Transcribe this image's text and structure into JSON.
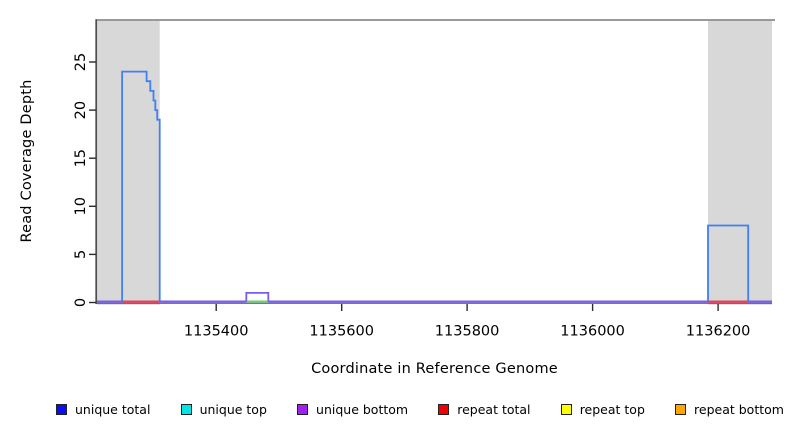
{
  "figure": {
    "title": "",
    "xlabel": "Coordinate in Reference Genome",
    "ylabel": "Read Coverage Depth",
    "background": "#ffffff",
    "styles": {
      "region_fill": "#d8d8d8",
      "frame_top_color": "#8c8c8c",
      "axis_color": "#4d4d4d",
      "tick_color": "#2b2b2b",
      "text_color": "#000000"
    }
  },
  "chart_data": {
    "type": "line",
    "subtype": "step-coverage",
    "title": "",
    "xlabel": "Coordinate in Reference Genome",
    "ylabel": "Read Coverage Depth",
    "xlim": [
      1135210,
      1136286
    ],
    "ylim": [
      0,
      29.5
    ],
    "xticks": [
      1135400,
      1135600,
      1135800,
      1136000,
      1136200
    ],
    "yticks": [
      0,
      5,
      10,
      15,
      20,
      25
    ],
    "grid": false,
    "legend_position": "bottom",
    "repeat_regions": [
      {
        "start": 1135210,
        "end": 1135310
      },
      {
        "start": 1136184,
        "end": 1136286
      }
    ],
    "traces": [
      {
        "name": "unique total (left repeat-edge block)",
        "color": "#3f80f2",
        "width": 1.8,
        "segments": [
          [
            1135250,
            1135289,
            24
          ],
          [
            1135289,
            1135295,
            23
          ],
          [
            1135295,
            1135300,
            22
          ],
          [
            1135300,
            1135303,
            21
          ],
          [
            1135303,
            1135306,
            20
          ],
          [
            1135306,
            1135310,
            19
          ]
        ]
      },
      {
        "name": "unique bottom bump",
        "color": "#7a5cf0",
        "width": 1.8,
        "segments": [
          [
            1135448,
            1135483,
            1
          ]
        ]
      },
      {
        "name": "unique total (right repeat-edge block)",
        "color": "#3f80f2",
        "width": 1.8,
        "segments": [
          [
            1136184,
            1136248,
            8
          ]
        ]
      }
    ],
    "baseline_segments": [
      {
        "name": "unique bottom zero line",
        "color": "#7a5cf0",
        "start": 1135210,
        "end": 1136286
      },
      {
        "name": "repeat total zero line left",
        "color": "#f04050",
        "start": 1135250,
        "end": 1135310
      },
      {
        "name": "repeat total zero line right",
        "color": "#f04050",
        "start": 1136184,
        "end": 1136248
      },
      {
        "name": "unique top zero line (bump)",
        "color": "#72d072",
        "start": 1135448,
        "end": 1135483
      }
    ],
    "legend": [
      {
        "label": "unique total",
        "color": "#0d0df0"
      },
      {
        "label": "unique top",
        "color": "#00e6e6"
      },
      {
        "label": "unique bottom",
        "color": "#a020f0"
      },
      {
        "label": "repeat total",
        "color": "#f00000"
      },
      {
        "label": "repeat top",
        "color": "#ffff00"
      },
      {
        "label": "repeat bottom",
        "color": "#ffa500"
      }
    ]
  }
}
